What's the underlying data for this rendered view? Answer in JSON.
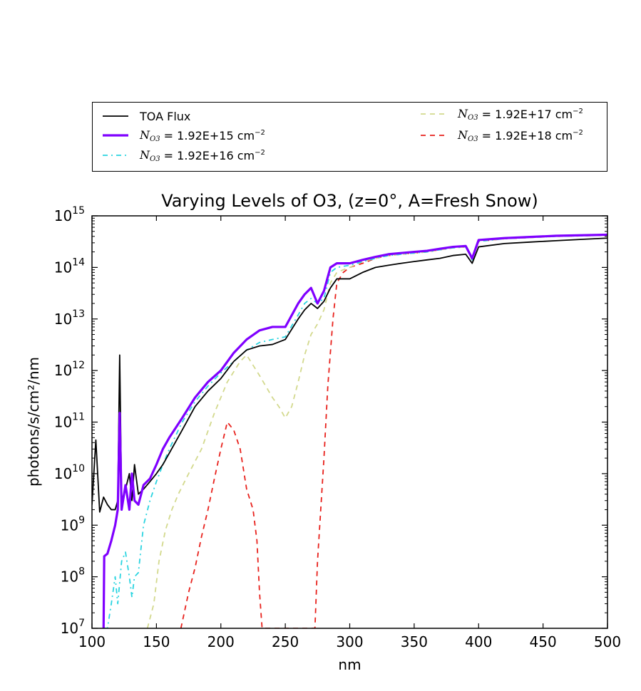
{
  "chart_data": {
    "type": "line",
    "title": "Varying Levels of O3, (z=0°, A=Fresh Snow)",
    "xlabel": "nm",
    "ylabel": "photons/s/cm²/nm",
    "xlim": [
      100,
      500
    ],
    "ylim": [
      10000000,
      1000000000000000
    ],
    "yscale": "log",
    "grid": false,
    "legend_position": "above plot",
    "x_ticks": [
      "100",
      "150",
      "200",
      "250",
      "300",
      "350",
      "400",
      "450",
      "500"
    ],
    "y_ticks": [
      {
        "base": "10",
        "exp": "7"
      },
      {
        "base": "10",
        "exp": "8"
      },
      {
        "base": "10",
        "exp": "9"
      },
      {
        "base": "10",
        "exp": "10"
      },
      {
        "base": "10",
        "exp": "11"
      },
      {
        "base": "10",
        "exp": "12"
      },
      {
        "base": "10",
        "exp": "13"
      },
      {
        "base": "10",
        "exp": "14"
      },
      {
        "base": "10",
        "exp": "15"
      }
    ],
    "series": [
      {
        "name": "TOA Flux",
        "color": "#000000",
        "style": "solid",
        "x": [
          100,
          103,
          106,
          109,
          112,
          115,
          118,
          120,
          121.5,
          123,
          126,
          129,
          131,
          133,
          136,
          140,
          145,
          150,
          155,
          160,
          170,
          180,
          190,
          200,
          210,
          220,
          230,
          240,
          250,
          260,
          265,
          270,
          275,
          280,
          285,
          290,
          300,
          310,
          320,
          330,
          340,
          350,
          360,
          370,
          380,
          390,
          395,
          400,
          420,
          440,
          460,
          480,
          500
        ],
        "y": [
          2500000000.0,
          45000000000.0,
          1800000000.0,
          3500000000.0,
          2500000000.0,
          2000000000.0,
          2000000000.0,
          3000000000.0,
          2000000000000.0,
          3000000000.0,
          5000000000.0,
          10000000000.0,
          3000000000.0,
          15000000000.0,
          4000000000.0,
          5000000000.0,
          7000000000.0,
          10000000000.0,
          15000000000.0,
          25000000000.0,
          70000000000.0,
          200000000000.0,
          400000000000.0,
          700000000000.0,
          1500000000000.0,
          2500000000000.0,
          3000000000000.0,
          3200000000000.0,
          4000000000000.0,
          10000000000000.0,
          15000000000000.0,
          20000000000000.0,
          16000000000000.0,
          22000000000000.0,
          40000000000000.0,
          60000000000000.0,
          60000000000000.0,
          80000000000000.0,
          100000000000000.0,
          110000000000000.0,
          120000000000000.0,
          130000000000000.0,
          140000000000000.0,
          150000000000000.0,
          170000000000000.0,
          180000000000000.0,
          120000000000000.0,
          250000000000000.0,
          290000000000000.0,
          310000000000000.0,
          330000000000000.0,
          350000000000000.0,
          370000000000000.0
        ]
      },
      {
        "name": "1.92E+15 cm",
        "color": "#7f00ff",
        "style": "solid",
        "x": [
          109,
          109.5,
          112,
          115,
          118,
          120,
          121.5,
          123,
          126,
          129,
          131,
          133,
          136,
          140,
          145,
          150,
          155,
          160,
          170,
          180,
          190,
          200,
          210,
          220,
          230,
          240,
          250,
          260,
          265,
          270,
          275,
          280,
          285,
          290,
          300,
          310,
          320,
          330,
          340,
          350,
          360,
          370,
          380,
          390,
          395,
          400,
          420,
          440,
          460,
          480,
          500
        ],
        "y": [
          10000000.0,
          250000000.0,
          280000000.0,
          500000000.0,
          1000000000.0,
          2000000000.0,
          150000000000.0,
          2000000000.0,
          6000000000.0,
          2000000000.0,
          10000000000.0,
          3000000000.0,
          2500000000.0,
          6000000000.0,
          8000000000.0,
          15000000000.0,
          30000000000.0,
          50000000000.0,
          120000000000.0,
          300000000000.0,
          600000000000.0,
          1000000000000.0,
          2200000000000.0,
          4000000000000.0,
          6000000000000.0,
          7000000000000.0,
          7000000000000.0,
          20000000000000.0,
          30000000000000.0,
          40000000000000.0,
          20000000000000.0,
          35000000000000.0,
          100000000000000.0,
          120000000000000.0,
          120000000000000.0,
          140000000000000.0,
          160000000000000.0,
          180000000000000.0,
          190000000000000.0,
          200000000000000.0,
          210000000000000.0,
          230000000000000.0,
          250000000000000.0,
          260000000000000.0,
          150000000000000.0,
          340000000000000.0,
          370000000000000.0,
          390000000000000.0,
          410000000000000.0,
          420000000000000.0,
          430000000000000.0
        ]
      },
      {
        "name": "1.92E+16 cm",
        "color": "#2ad4e0",
        "style": "dashdot",
        "x": [
          109,
          112,
          115,
          118,
          120,
          123,
          126,
          129,
          131,
          133,
          136,
          140,
          145,
          150,
          155,
          160,
          170,
          180,
          190,
          200,
          210,
          220,
          230,
          240,
          250,
          260,
          265,
          270,
          275,
          280,
          285,
          290,
          300,
          310,
          320,
          330,
          340,
          350,
          360,
          370,
          380,
          390,
          395,
          400,
          420,
          440,
          460,
          480,
          500
        ],
        "y": [
          10000000.0,
          10000000.0,
          30000000.0,
          100000000.0,
          30000000.0,
          200000000.0,
          300000000.0,
          100000000.0,
          40000000.0,
          100000000.0,
          120000000.0,
          1000000000.0,
          3000000000.0,
          7000000000.0,
          15000000000.0,
          30000000000.0,
          100000000000.0,
          250000000000.0,
          500000000000.0,
          900000000000.0,
          1500000000000.0,
          2500000000000.0,
          3500000000000.0,
          4000000000000.0,
          4500000000000.0,
          12000000000000.0,
          20000000000000.0,
          25000000000000.0,
          20000000000000.0,
          25000000000000.0,
          80000000000000.0,
          100000000000000.0,
          110000000000000.0,
          130000000000000.0,
          150000000000000.0,
          170000000000000.0,
          180000000000000.0,
          190000000000000.0,
          200000000000000.0,
          220000000000000.0,
          240000000000000.0,
          250000000000000.0,
          140000000000000.0,
          320000000000000.0,
          360000000000000.0,
          380000000000000.0,
          400000000000000.0,
          410000000000000.0,
          420000000000000.0
        ]
      },
      {
        "name": "1.92E+17 cm",
        "color": "#d3d98d",
        "style": "dashed",
        "x": [
          143,
          148,
          152,
          157,
          162,
          167,
          175,
          185,
          195,
          205,
          215,
          220,
          230,
          240,
          245,
          250,
          255,
          260,
          265,
          270,
          275,
          280,
          285,
          290,
          295,
          300,
          310,
          320,
          330,
          340,
          350,
          360,
          370,
          380,
          390,
          395,
          400,
          420,
          440,
          460,
          480,
          500
        ],
        "y": [
          10000000.0,
          30000000.0,
          200000000.0,
          800000000.0,
          2000000000.0,
          4000000000.0,
          10000000000.0,
          30000000000.0,
          150000000000.0,
          600000000000.0,
          1500000000000.0,
          2000000000000.0,
          800000000000.0,
          300000000000.0,
          200000000000.0,
          120000000000.0,
          200000000000.0,
          600000000000.0,
          2000000000000.0,
          5000000000000.0,
          8000000000000.0,
          15000000000000.0,
          50000000000000.0,
          80000000000000.0,
          90000000000000.0,
          100000000000000.0,
          130000000000000.0,
          150000000000000.0,
          170000000000000.0,
          180000000000000.0,
          190000000000000.0,
          200000000000000.0,
          220000000000000.0,
          240000000000000.0,
          250000000000000.0,
          140000000000000.0,
          320000000000000.0,
          360000000000000.0,
          380000000000000.0,
          400000000000000.0,
          410000000000000.0,
          420000000000000.0
        ]
      },
      {
        "name": "1.92E+18 cm",
        "color": "#e8211c",
        "style": "dashed",
        "x": [
          169,
          175,
          180,
          185,
          190,
          195,
          200,
          205,
          210,
          215,
          220,
          225,
          228,
          230,
          232,
          273,
          275,
          280,
          283,
          287,
          290,
          295,
          300,
          310,
          320,
          330,
          340,
          350,
          360,
          370,
          380,
          390,
          395,
          400,
          420,
          440,
          460,
          480,
          500
        ],
        "y": [
          10000000.0,
          50000000.0,
          150000000.0,
          600000000.0,
          2000000000.0,
          8000000000.0,
          30000000000.0,
          100000000000.0,
          70000000000.0,
          30000000000.0,
          5000000000.0,
          2000000000.0,
          500000000.0,
          50000000.0,
          10000000.0,
          10000000.0,
          200000000.0,
          20000000000.0,
          500000000000.0,
          10000000000000.0,
          50000000000000.0,
          80000000000000.0,
          100000000000000.0,
          120000000000000.0,
          150000000000000.0,
          170000000000000.0,
          180000000000000.0,
          190000000000000.0,
          200000000000000.0,
          220000000000000.0,
          240000000000000.0,
          250000000000000.0,
          140000000000000.0,
          320000000000000.0,
          360000000000000.0,
          380000000000000.0,
          400000000000000.0,
          410000000000000.0,
          420000000000000.0
        ]
      }
    ]
  },
  "legend": {
    "math_symbol": "N",
    "math_subscript": "O3",
    "unit": "cm",
    "unit_exp": "−2"
  }
}
